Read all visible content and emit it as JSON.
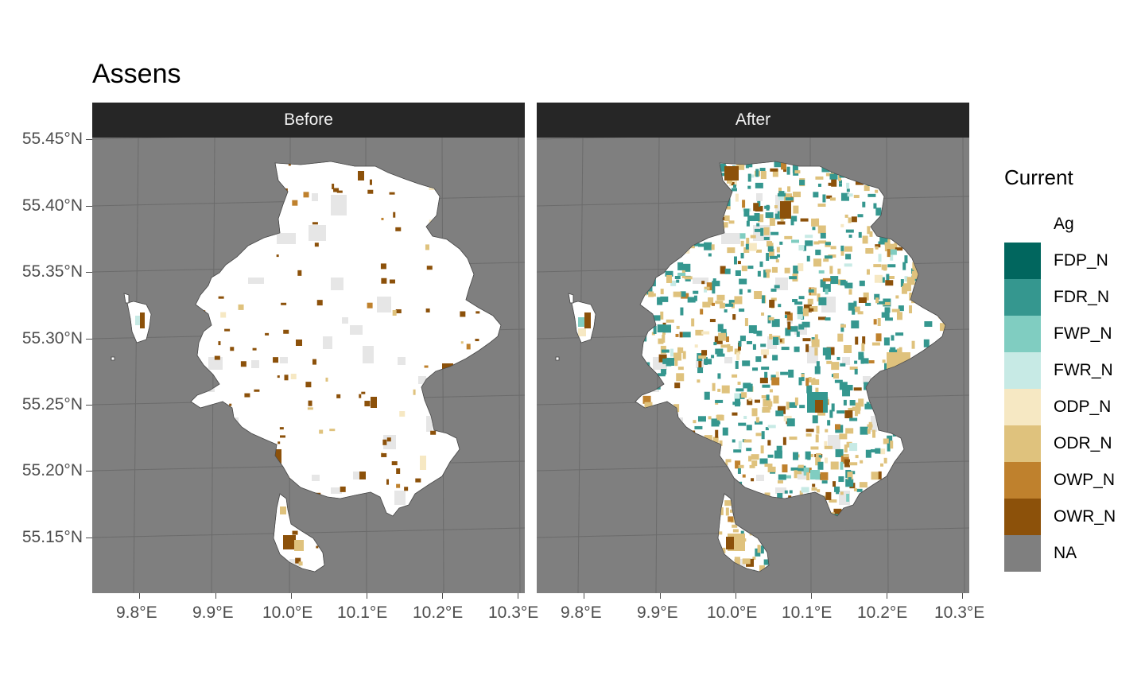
{
  "title": "Assens",
  "panels": [
    {
      "strip_label": "Before"
    },
    {
      "strip_label": "After"
    }
  ],
  "y_axis": {
    "ticks": [
      "55.45°N",
      "55.40°N",
      "55.35°N",
      "55.30°N",
      "55.25°N",
      "55.20°N",
      "55.15°N"
    ]
  },
  "x_axis": {
    "ticks": [
      "9.8°E",
      "9.9°E",
      "10.0°E",
      "10.1°E",
      "10.2°E",
      "10.3°E"
    ]
  },
  "legend": {
    "title": "Current",
    "items": [
      {
        "label": "Ag",
        "color": "#ffffff"
      },
      {
        "label": "FDP_N",
        "color": "#01665e"
      },
      {
        "label": "FDR_N",
        "color": "#35978f"
      },
      {
        "label": "FWP_N",
        "color": "#80cdc1"
      },
      {
        "label": "FWR_N",
        "color": "#c7eae5"
      },
      {
        "label": "ODP_N",
        "color": "#f6e8c3"
      },
      {
        "label": "ODR_N",
        "color": "#dfc27d"
      },
      {
        "label": "OWP_N",
        "color": "#bf812d"
      },
      {
        "label": "OWR_N",
        "color": "#8c510a"
      },
      {
        "label": "NA",
        "color": "#7f7f7f"
      }
    ]
  }
}
